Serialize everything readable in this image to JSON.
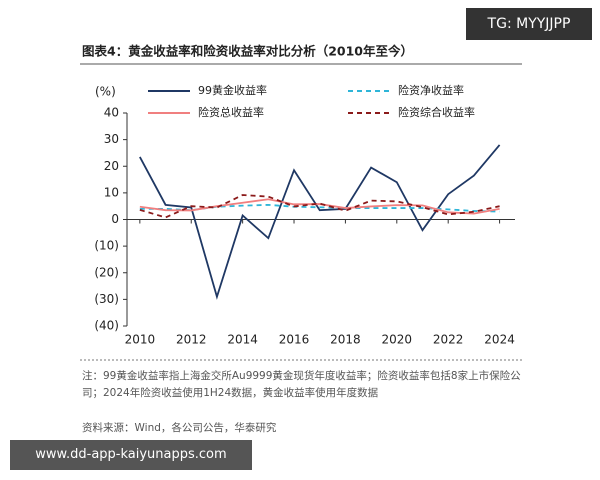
{
  "watermark": "TG: MYYJJPP",
  "banner": "www.dd-app-kaiyunapps.com",
  "notes": [
    "注：99黄金收益率指上海金交所Au9999黄金现货年度收益率；险资收益率包括8家上市保险公司；2024年险资收益使用1H24数据，黄金收益率使用年度数据",
    "资料来源：Wind，各公司公告，华泰研究"
  ],
  "chart_data": {
    "type": "line",
    "title": "图表4：黄金收益率和险资收益率对比分析（2010年至今）",
    "y_label": "(%)",
    "x": [
      2010,
      2011,
      2012,
      2013,
      2014,
      2015,
      2016,
      2017,
      2018,
      2019,
      2020,
      2021,
      2022,
      2023,
      2024
    ],
    "series": [
      {
        "name": "99黄金收益率",
        "color": "#1f3864",
        "dash": false,
        "values": [
          23.5,
          5.5,
          4.5,
          -29,
          1.5,
          -7,
          18.5,
          3.5,
          4,
          19.5,
          14,
          -4,
          9.5,
          16.5,
          28
        ]
      },
      {
        "name": "险资净收益率",
        "color": "#2eb5d8",
        "dash": true,
        "values": [
          4,
          4,
          3.5,
          4.8,
          5.2,
          5.5,
          4.8,
          4.6,
          4.3,
          4.3,
          4.3,
          4.3,
          3.8,
          3.2,
          3
        ]
      },
      {
        "name": "险资总收益率",
        "color": "#f07f7f",
        "dash": false,
        "values": [
          4.8,
          3.5,
          3.4,
          5,
          6.3,
          7.6,
          5.7,
          5.8,
          4.3,
          4.9,
          5.4,
          5.3,
          2.7,
          2.2,
          4
        ]
      },
      {
        "name": "险资综合收益率",
        "color": "#8b1a1a",
        "dash": true,
        "values": [
          3.6,
          0.8,
          5,
          4.5,
          9.2,
          8.6,
          4.9,
          6,
          3.3,
          7.1,
          6.8,
          4.6,
          1.9,
          2.9,
          5
        ]
      }
    ],
    "xlim": [
      2009.5,
      2024.6
    ],
    "xticks": [
      2010,
      2012,
      2014,
      2016,
      2018,
      2020,
      2022,
      2024
    ],
    "ylim": [
      -40,
      40
    ],
    "yticks": [
      40,
      30,
      20,
      10,
      0,
      {
        "value": -10,
        "label": "(10)"
      },
      {
        "value": -20,
        "label": "(20)"
      },
      {
        "value": -30,
        "label": "(30)"
      },
      {
        "value": -40,
        "label": "(40)"
      }
    ]
  }
}
